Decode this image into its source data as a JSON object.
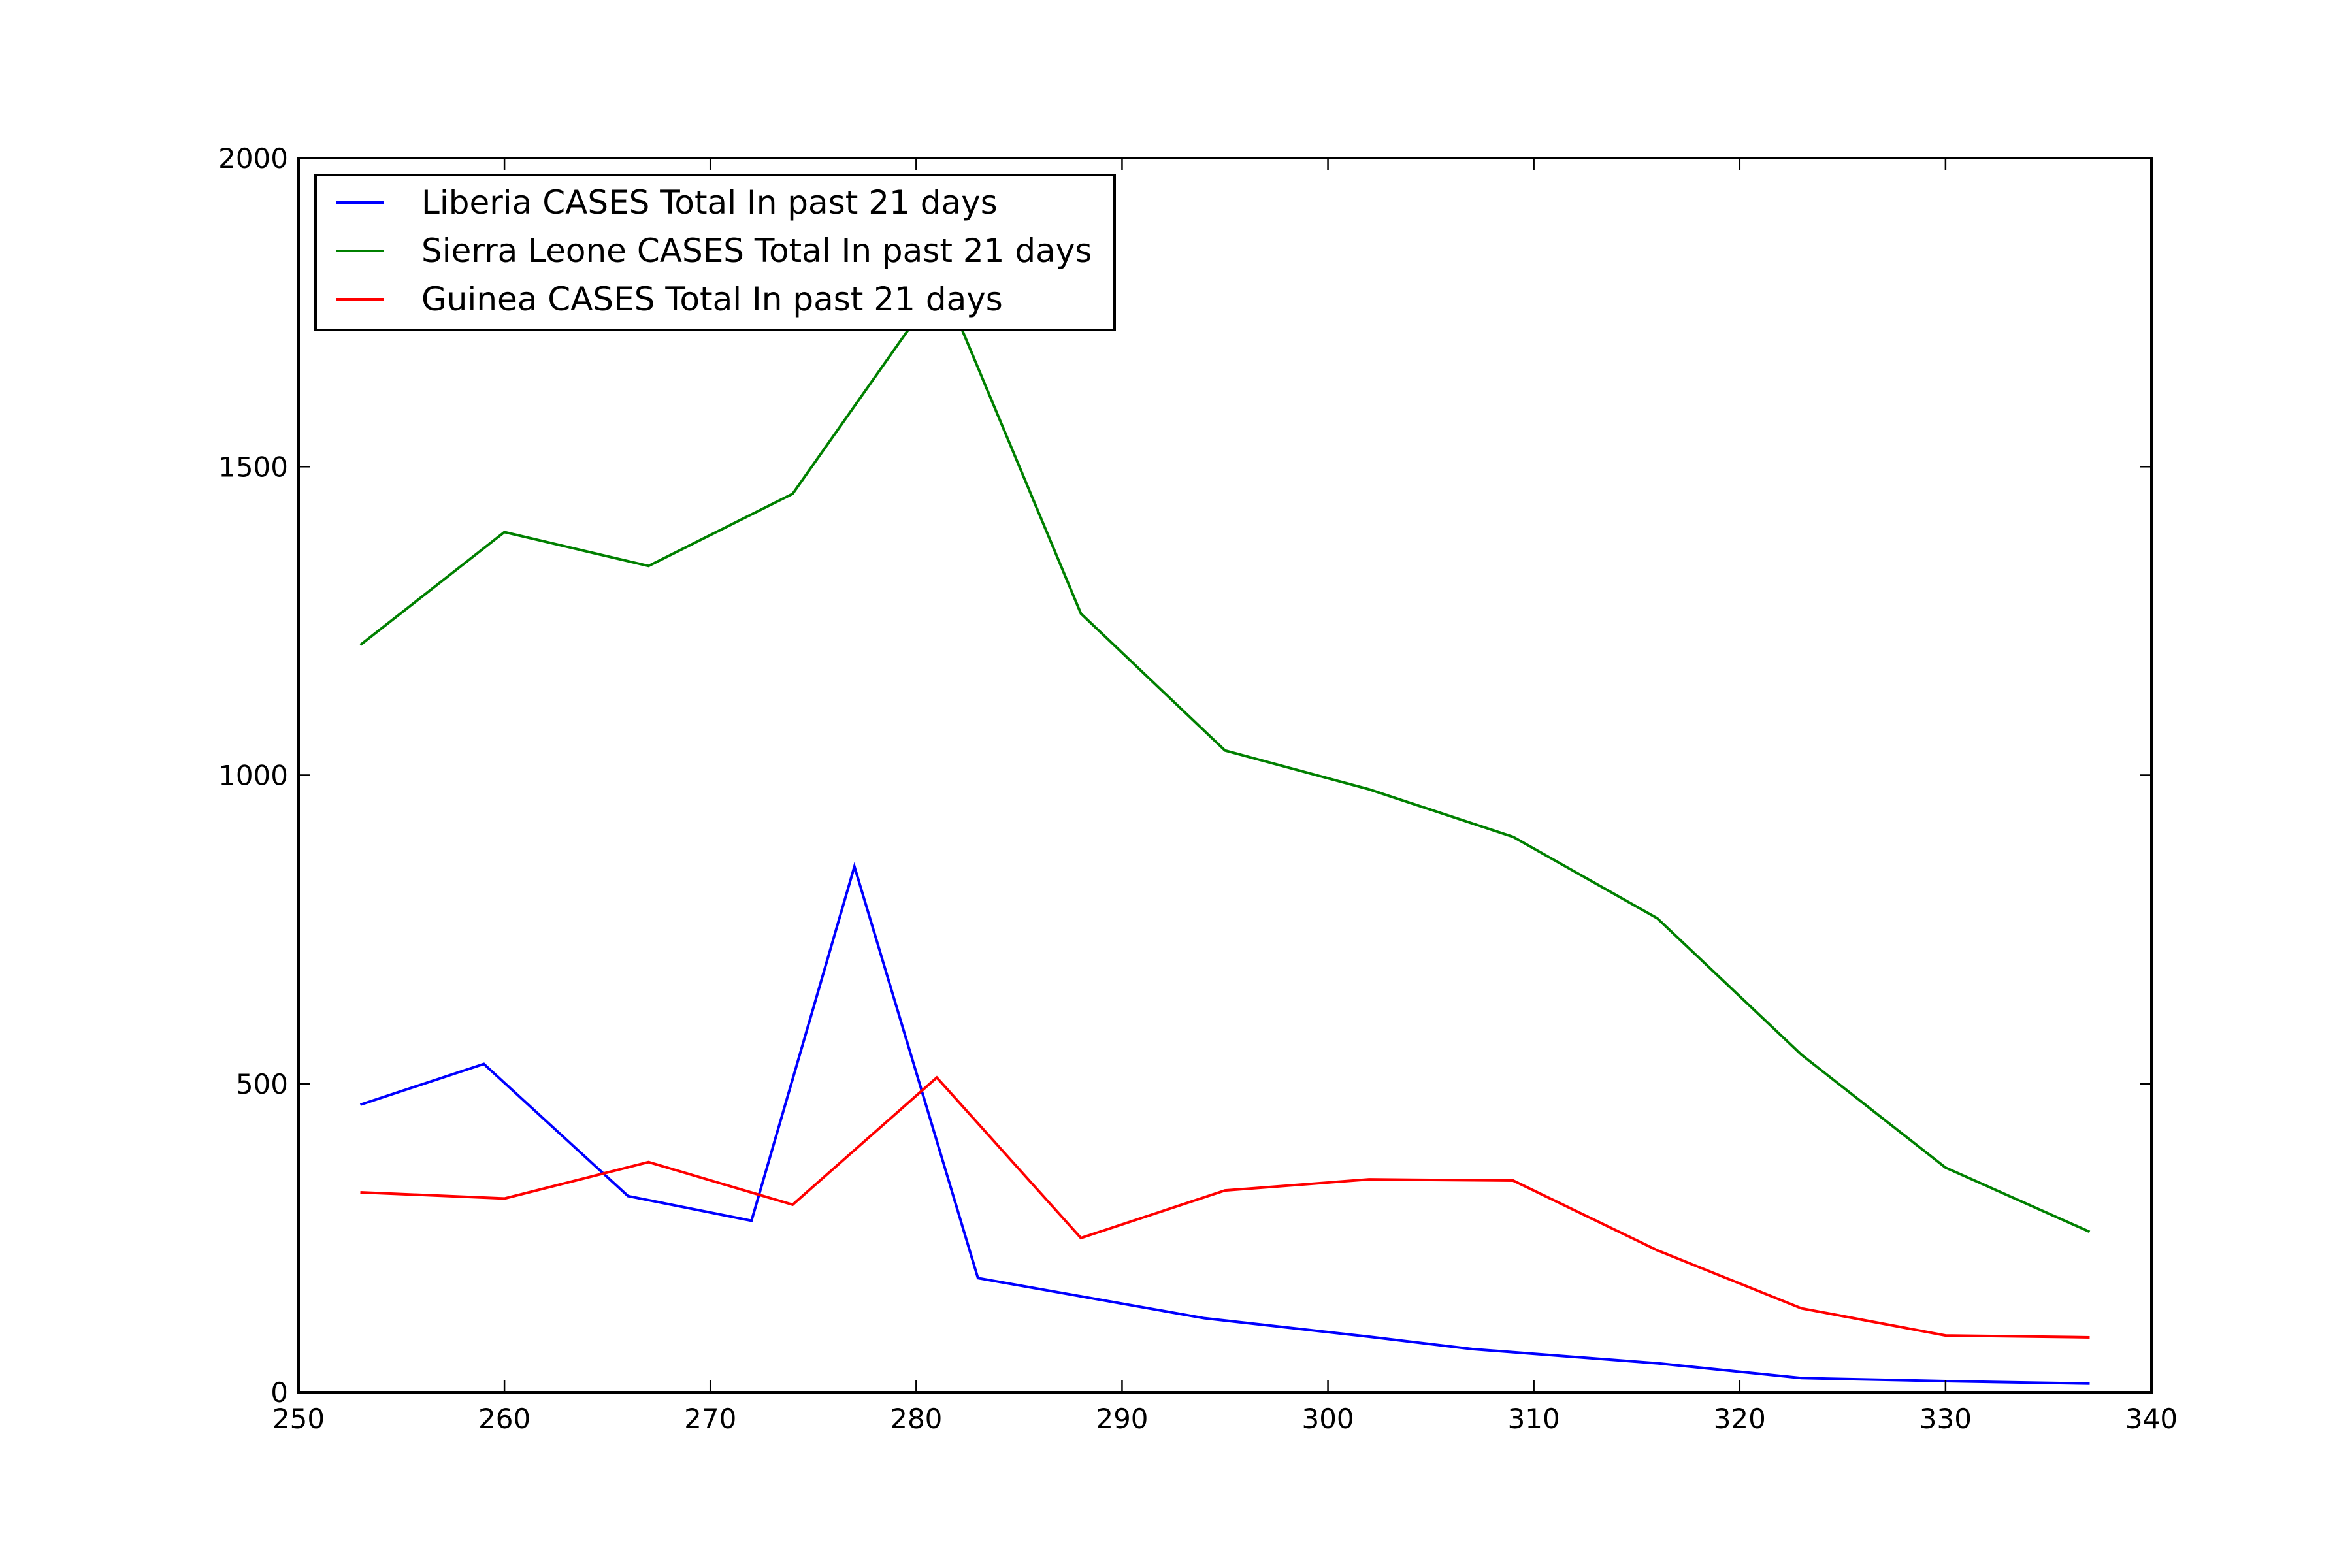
{
  "chart_data": {
    "type": "line",
    "title": "",
    "xlabel": "",
    "ylabel": "",
    "xlim": [
      250,
      340
    ],
    "ylim": [
      0,
      2000
    ],
    "x_ticks": [
      250,
      260,
      270,
      280,
      290,
      300,
      310,
      320,
      330,
      340
    ],
    "y_ticks": [
      0,
      500,
      1000,
      1500,
      2000
    ],
    "grid": false,
    "legend_position": "top-left",
    "series": [
      {
        "name": "Liberia CASES Total In past 21 days",
        "color": "#0000ff",
        "x": [
          253,
          259,
          266,
          272,
          277,
          283,
          294,
          302,
          307,
          316,
          323,
          330,
          337
        ],
        "y": [
          466,
          532,
          318,
          278,
          852,
          185,
          120,
          90,
          70,
          47,
          23,
          18,
          14
        ]
      },
      {
        "name": "Sierra Leone CASES Total In past 21 days",
        "color": "#008000",
        "x": [
          253,
          260,
          267,
          274,
          280,
          282,
          288,
          295,
          302,
          309,
          316,
          323,
          330,
          337
        ],
        "y": [
          1211,
          1394,
          1339,
          1456,
          1740,
          1740,
          1262,
          1040,
          977,
          900,
          768,
          547,
          364,
          260
        ]
      },
      {
        "name": "Guinea CASES Total In past 21 days",
        "color": "#ff0000",
        "x": [
          253,
          260,
          267,
          274,
          281,
          288,
          295,
          302,
          309,
          316,
          323,
          330,
          337
        ],
        "y": [
          324,
          314,
          373,
          304,
          510,
          250,
          327,
          345,
          343,
          230,
          136,
          92,
          89
        ]
      }
    ]
  }
}
